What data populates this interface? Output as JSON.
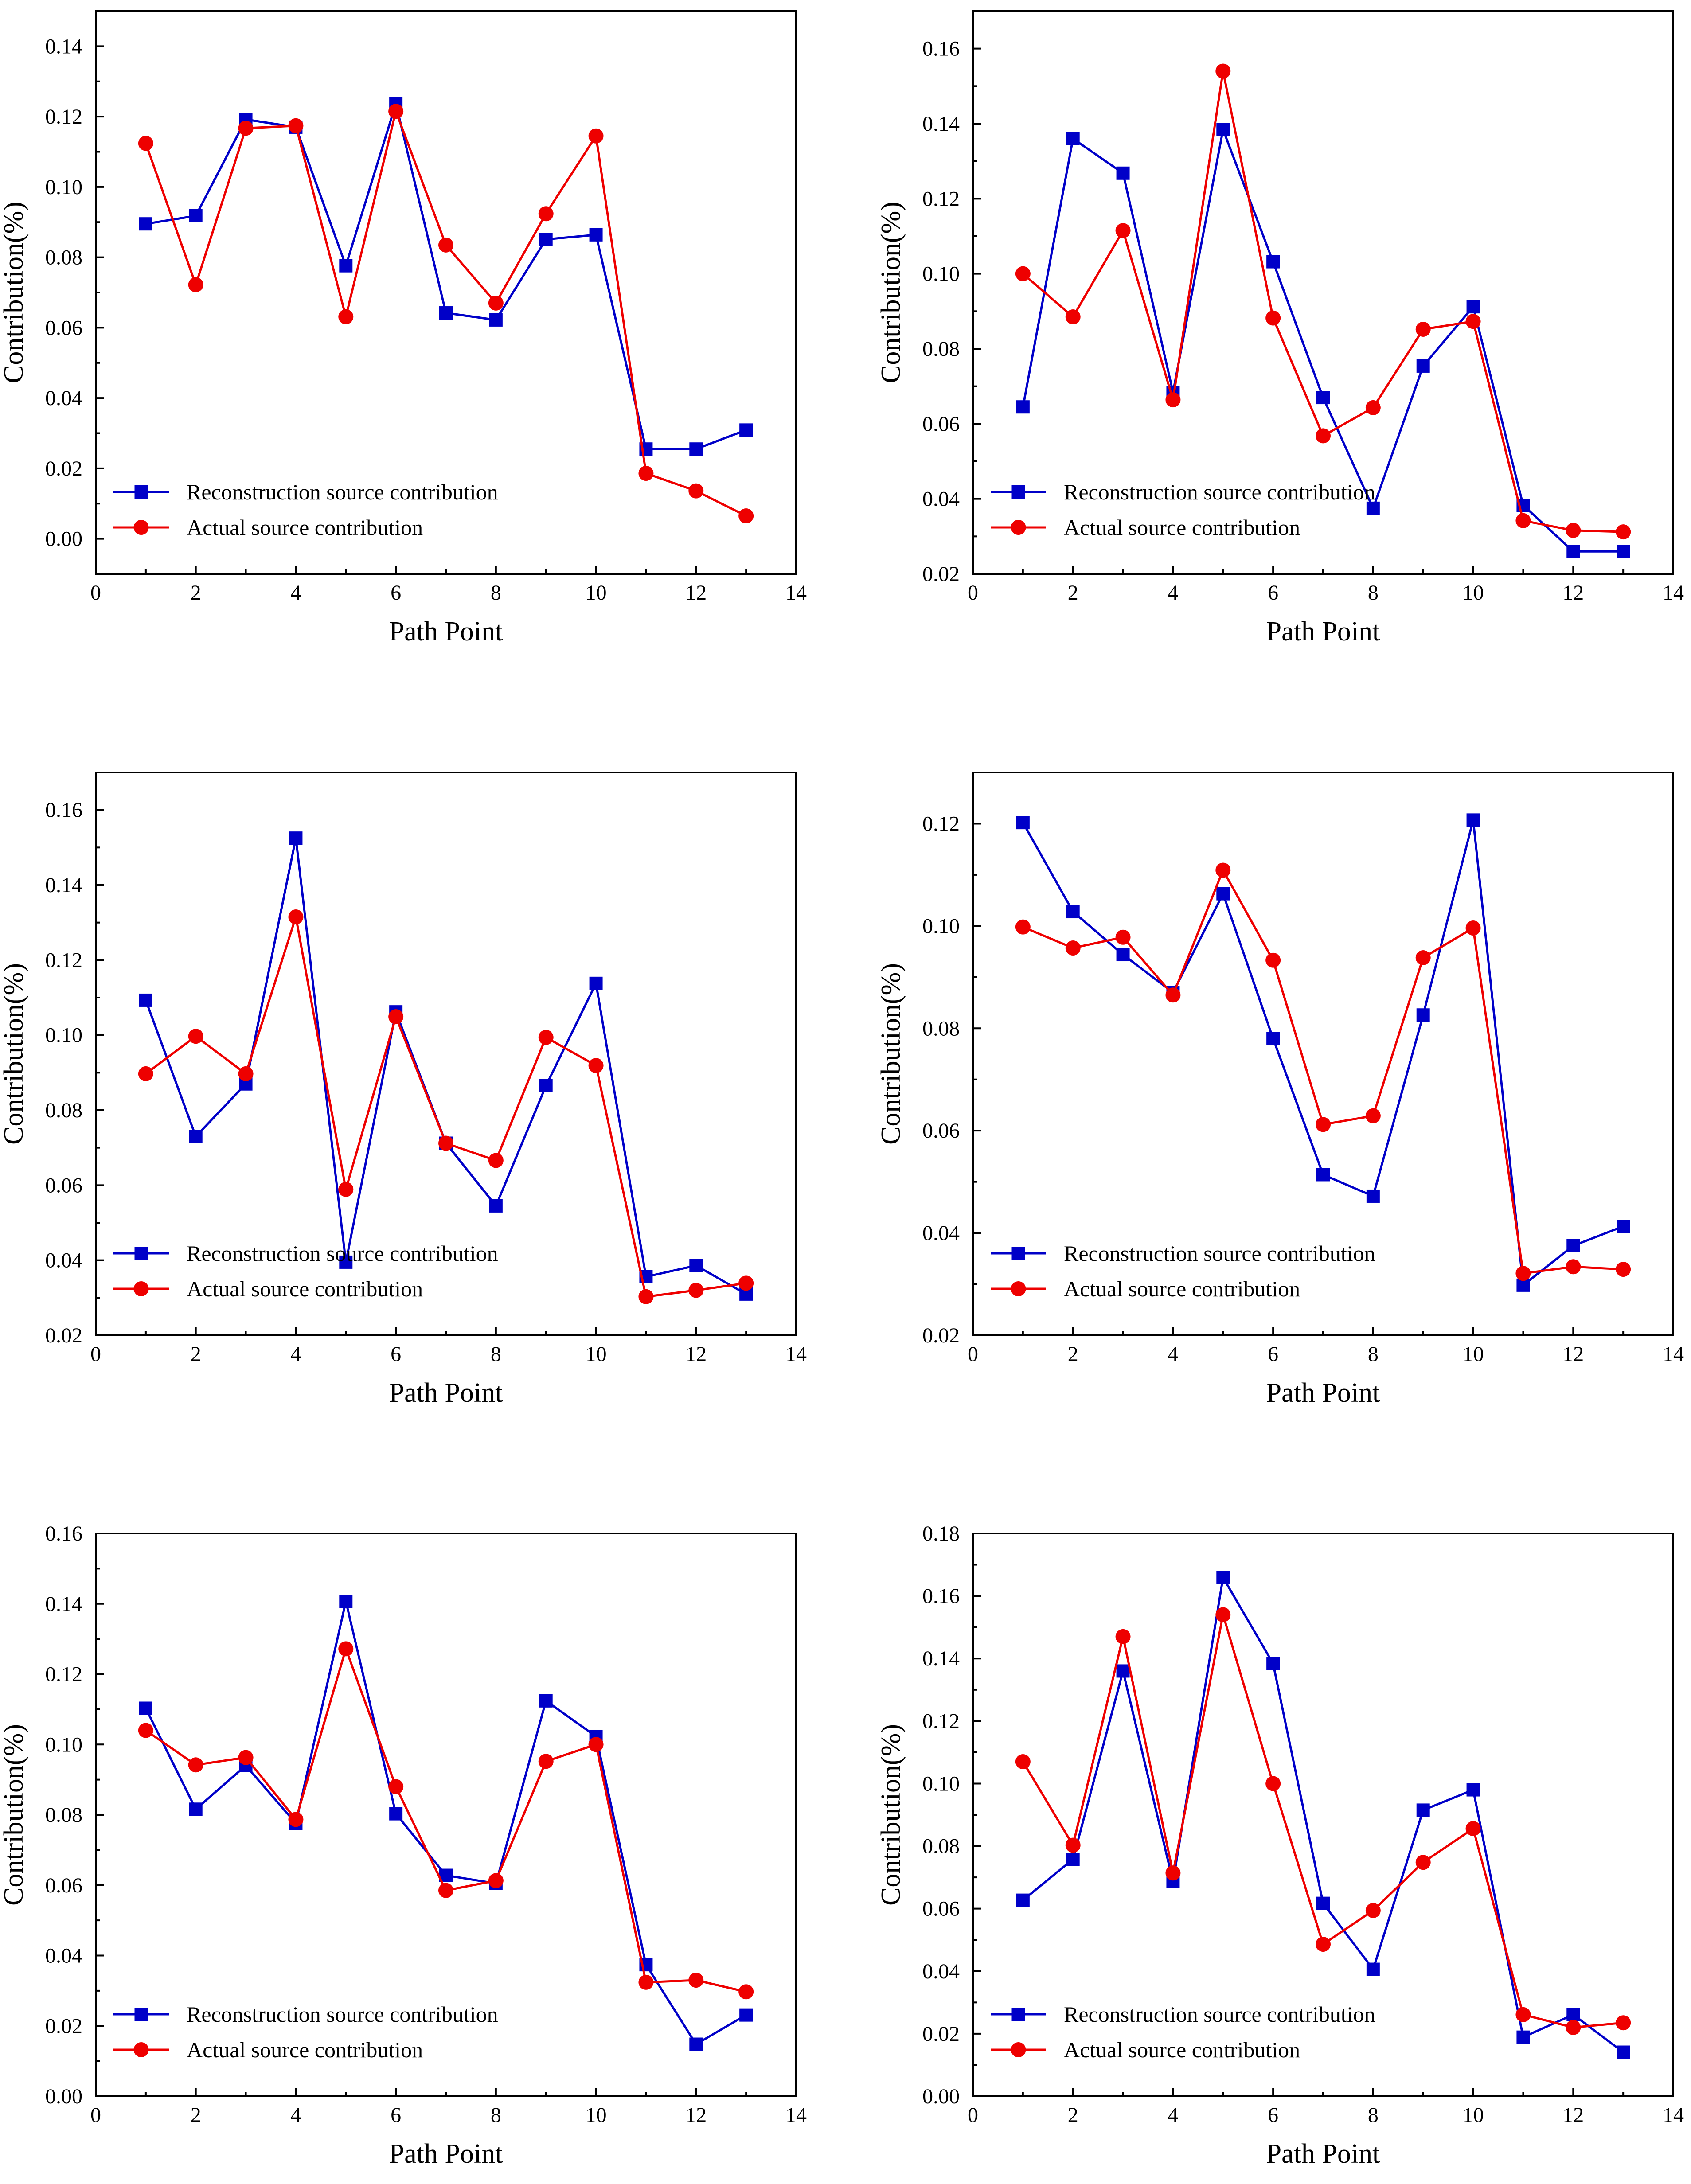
{
  "style": {
    "reconstruction_color": "#0000c8",
    "actual_color": "#ee0000"
  },
  "chart_data": [
    {
      "type": "line",
      "xlabel": "Path Point",
      "ylabel": "Contribution(%)",
      "xlim": [
        0,
        14
      ],
      "ylim": [
        -0.01,
        0.15
      ],
      "xticks": [
        "0",
        "2",
        "4",
        "6",
        "8",
        "10",
        "12",
        "14"
      ],
      "yticks": [
        "0.00",
        "0.02",
        "0.04",
        "0.06",
        "0.08",
        "0.10",
        "0.12",
        "0.14"
      ],
      "legend_position": "bottom-left",
      "x": [
        1,
        2,
        3,
        4,
        5,
        6,
        7,
        8,
        9,
        10,
        11,
        12,
        13
      ],
      "series": [
        {
          "name": "Reconstruction source contribution",
          "marker": "square",
          "values": [
            0.0895,
            0.0918,
            0.1192,
            0.117,
            0.0776,
            0.1237,
            0.0642,
            0.0622,
            0.0851,
            0.0864,
            0.0255,
            0.0255,
            0.0309
          ]
        },
        {
          "name": "Actual source contribution",
          "marker": "circle",
          "values": [
            0.1124,
            0.0722,
            0.1167,
            0.1174,
            0.0631,
            0.1215,
            0.0835,
            0.067,
            0.0924,
            0.1145,
            0.0186,
            0.0136,
            0.0065
          ]
        }
      ]
    },
    {
      "type": "line",
      "xlabel": "Path Point",
      "ylabel": "Contribution(%)",
      "xlim": [
        0,
        14
      ],
      "ylim": [
        0.02,
        0.17
      ],
      "xticks": [
        "0",
        "2",
        "4",
        "6",
        "8",
        "10",
        "12",
        "14"
      ],
      "yticks": [
        "0.02",
        "0.04",
        "0.06",
        "0.08",
        "0.10",
        "0.12",
        "0.14",
        "0.16"
      ],
      "legend_position": "bottom-left",
      "x": [
        1,
        2,
        3,
        4,
        5,
        6,
        7,
        8,
        9,
        10,
        11,
        12,
        13
      ],
      "series": [
        {
          "name": "Reconstruction source contribution",
          "marker": "square",
          "values": [
            0.0645,
            0.136,
            0.1268,
            0.0684,
            0.1384,
            0.1032,
            0.067,
            0.0375,
            0.0754,
            0.0912,
            0.0383,
            0.026,
            0.026
          ]
        },
        {
          "name": "Actual source contribution",
          "marker": "circle",
          "values": [
            0.1,
            0.0885,
            0.1115,
            0.0664,
            0.154,
            0.0882,
            0.0568,
            0.0643,
            0.0852,
            0.0873,
            0.0342,
            0.0316,
            0.0312
          ]
        }
      ]
    },
    {
      "type": "line",
      "xlabel": "Path Point",
      "ylabel": "Contribution(%)",
      "xlim": [
        0,
        14
      ],
      "ylim": [
        0.02,
        0.17
      ],
      "xticks": [
        "0",
        "2",
        "4",
        "6",
        "8",
        "10",
        "12",
        "14"
      ],
      "yticks": [
        "0.02",
        "0.04",
        "0.06",
        "0.08",
        "0.10",
        "0.12",
        "0.14",
        "0.16"
      ],
      "legend_position": "bottom-left",
      "x": [
        1,
        2,
        3,
        4,
        5,
        6,
        7,
        8,
        9,
        10,
        11,
        12,
        13
      ],
      "series": [
        {
          "name": "Reconstruction source contribution",
          "marker": "square",
          "values": [
            0.1093,
            0.073,
            0.087,
            0.1525,
            0.0395,
            0.1062,
            0.0712,
            0.0545,
            0.0865,
            0.1138,
            0.0356,
            0.0386,
            0.031
          ]
        },
        {
          "name": "Actual source contribution",
          "marker": "circle",
          "values": [
            0.0897,
            0.0997,
            0.0897,
            0.1315,
            0.0589,
            0.1049,
            0.0712,
            0.0666,
            0.0994,
            0.0919,
            0.0303,
            0.032,
            0.0339
          ]
        }
      ]
    },
    {
      "type": "line",
      "xlabel": "Path Point",
      "ylabel": "Contribution(%)",
      "xlim": [
        0,
        14
      ],
      "ylim": [
        0.02,
        0.13
      ],
      "xticks": [
        "0",
        "2",
        "4",
        "6",
        "8",
        "10",
        "12",
        "14"
      ],
      "yticks": [
        "0.02",
        "0.04",
        "0.06",
        "0.08",
        "0.10",
        "0.12"
      ],
      "legend_position": "bottom-left",
      "x": [
        1,
        2,
        3,
        4,
        5,
        6,
        7,
        8,
        9,
        10,
        11,
        12,
        13
      ],
      "series": [
        {
          "name": "Reconstruction source contribution",
          "marker": "square",
          "values": [
            0.1202,
            0.1028,
            0.0944,
            0.087,
            0.1063,
            0.078,
            0.0514,
            0.0472,
            0.0826,
            0.1207,
            0.0298,
            0.0375,
            0.0413
          ]
        },
        {
          "name": "Actual source contribution",
          "marker": "circle",
          "values": [
            0.0998,
            0.0957,
            0.0978,
            0.0865,
            0.1109,
            0.0933,
            0.0612,
            0.0629,
            0.0938,
            0.0996,
            0.0321,
            0.0334,
            0.0329
          ]
        }
      ]
    },
    {
      "type": "line",
      "xlabel": "Path Point",
      "ylabel": "Contribution(%)",
      "xlim": [
        0,
        14
      ],
      "ylim": [
        0.0,
        0.16
      ],
      "xticks": [
        "0",
        "2",
        "4",
        "6",
        "8",
        "10",
        "12",
        "14"
      ],
      "yticks": [
        "0.00",
        "0.02",
        "0.04",
        "0.06",
        "0.08",
        "0.10",
        "0.12",
        "0.14",
        "0.16"
      ],
      "legend_position": "bottom-left",
      "x": [
        1,
        2,
        3,
        4,
        5,
        6,
        7,
        8,
        9,
        10,
        11,
        12,
        13
      ],
      "series": [
        {
          "name": "Reconstruction source contribution",
          "marker": "square",
          "values": [
            0.1103,
            0.0816,
            0.094,
            0.0776,
            0.1407,
            0.0803,
            0.0628,
            0.0605,
            0.1124,
            0.1023,
            0.0374,
            0.0148,
            0.0231
          ]
        },
        {
          "name": "Actual source contribution",
          "marker": "circle",
          "values": [
            0.104,
            0.0942,
            0.0963,
            0.0787,
            0.1272,
            0.088,
            0.0585,
            0.0613,
            0.0952,
            0.1,
            0.0324,
            0.033,
            0.0297
          ]
        }
      ]
    },
    {
      "type": "line",
      "xlabel": "Path Point",
      "ylabel": "Contribution(%)",
      "xlim": [
        0,
        14
      ],
      "ylim": [
        0.0,
        0.18
      ],
      "xticks": [
        "0",
        "2",
        "4",
        "6",
        "8",
        "10",
        "12",
        "14"
      ],
      "yticks": [
        "0.00",
        "0.02",
        "0.04",
        "0.06",
        "0.08",
        "0.10",
        "0.12",
        "0.14",
        "0.16",
        "0.18"
      ],
      "legend_position": "bottom-left",
      "x": [
        1,
        2,
        3,
        4,
        5,
        6,
        7,
        8,
        9,
        10,
        11,
        12,
        13
      ],
      "series": [
        {
          "name": "Reconstruction source contribution",
          "marker": "square",
          "values": [
            0.0627,
            0.0758,
            0.136,
            0.0686,
            0.1659,
            0.1384,
            0.0617,
            0.0406,
            0.0915,
            0.098,
            0.0189,
            0.0261,
            0.0141
          ]
        },
        {
          "name": "Actual source contribution",
          "marker": "circle",
          "values": [
            0.107,
            0.0803,
            0.147,
            0.0714,
            0.154,
            0.1,
            0.0486,
            0.0594,
            0.0748,
            0.0856,
            0.0261,
            0.022,
            0.0235
          ]
        }
      ]
    }
  ]
}
